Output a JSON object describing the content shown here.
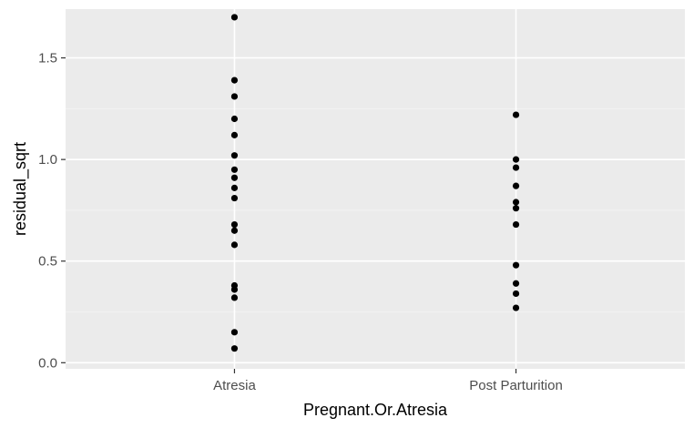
{
  "chart_data": {
    "type": "scatter",
    "title": "",
    "xlabel": "Pregnant.Or.Atresia",
    "ylabel": "residual_sqrt",
    "categories": [
      "Atresia",
      "Post Parturition"
    ],
    "ylim": [
      -0.03,
      1.74
    ],
    "yticks": [
      0.0,
      0.5,
      1.0,
      1.5
    ],
    "ytick_labels": [
      "0.0",
      "0.5",
      "1.0",
      "1.5"
    ],
    "grid": true,
    "legend": "none",
    "colors": {
      "panel": "#ebebeb",
      "grid_major": "#ffffff",
      "grid_minor": "#f5f5f5",
      "point": "#000000",
      "tick": "#333333"
    },
    "series": [
      {
        "category": "Atresia",
        "values": [
          1.7,
          1.39,
          1.31,
          1.2,
          1.12,
          1.02,
          0.95,
          0.91,
          0.86,
          0.81,
          0.68,
          0.65,
          0.58,
          0.38,
          0.36,
          0.32,
          0.15,
          0.07
        ]
      },
      {
        "category": "Post Parturition",
        "values": [
          1.22,
          1.0,
          0.96,
          0.87,
          0.79,
          0.76,
          0.68,
          0.48,
          0.39,
          0.34,
          0.27
        ]
      }
    ]
  }
}
